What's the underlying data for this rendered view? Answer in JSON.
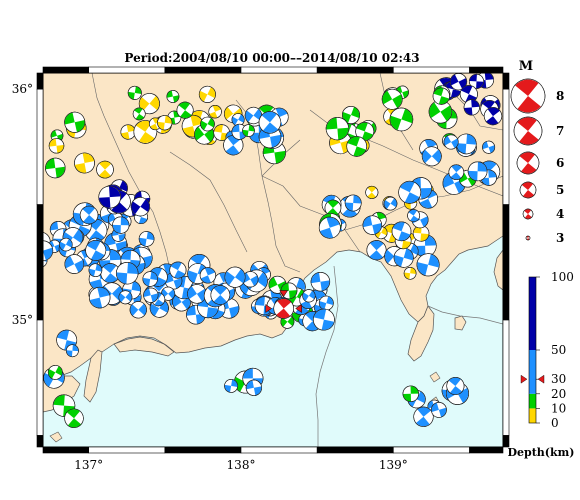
{
  "title": "Period:2004/08/10 00:00––2014/08/10 02:43",
  "map": {
    "lon_range": [
      136.7,
      139.72
    ],
    "lat_range": [
      34.45,
      36.07
    ],
    "lon_ticks": [
      137,
      138,
      139
    ],
    "lat_ticks": [
      35,
      36
    ],
    "lon_labels": [
      "137°",
      "138°",
      "139°"
    ],
    "lat_labels": [
      "35°",
      "36°"
    ],
    "colors": {
      "land": "#fbe6c6",
      "sea": "#e0fbfb",
      "border": "#555555"
    },
    "highlight_event": {
      "lon": 138.28,
      "lat": 35.05,
      "depth": 30
    }
  },
  "magnitude_legend": {
    "heading": "M",
    "items": [
      {
        "label": "8",
        "mag": 8
      },
      {
        "label": "7",
        "mag": 7
      },
      {
        "label": "6",
        "mag": 6
      },
      {
        "label": "5",
        "mag": 5
      },
      {
        "label": "4",
        "mag": 4
      },
      {
        "label": "3",
        "mag": 3
      }
    ],
    "color": "#e41a1c"
  },
  "depth_scale": {
    "unit_label": "Depth(km)",
    "ticks": [
      {
        "value": 0,
        "label": "0"
      },
      {
        "value": 10,
        "label": "10"
      },
      {
        "value": 20,
        "label": "20"
      },
      {
        "value": 30,
        "label": "30"
      },
      {
        "value": 50,
        "label": "50"
      },
      {
        "value": 100,
        "label": "100"
      }
    ],
    "bands": [
      {
        "from": 0,
        "to": 10,
        "color": "#ffd700"
      },
      {
        "from": 10,
        "to": 20,
        "color": "#00d000"
      },
      {
        "from": 20,
        "to": 50,
        "color": "#1e90ff"
      },
      {
        "from": 50,
        "to": 100,
        "color": "#0000a8"
      }
    ],
    "marker_depth": 30,
    "marker_color": "#e41a1c"
  }
}
